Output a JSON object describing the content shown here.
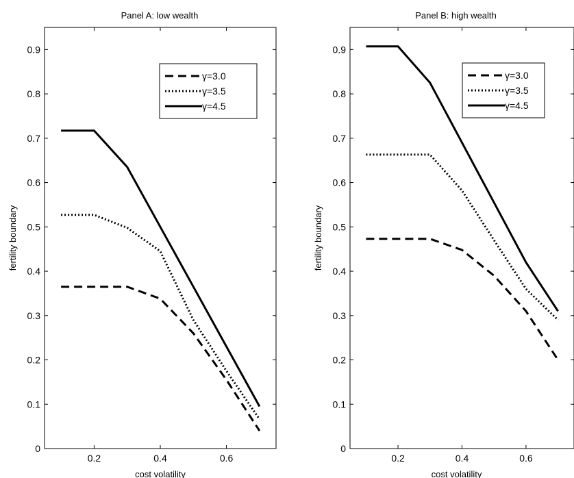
{
  "chart_data": [
    {
      "type": "line",
      "title": "Panel A: low wealth",
      "xlabel": "cost volatility",
      "ylabel": "fertility boundary",
      "xlim": [
        0.05,
        0.75
      ],
      "ylim": [
        0,
        0.95
      ],
      "xticks": [
        "0.2",
        "0.4",
        "0.6"
      ],
      "yticks": [
        "0",
        "0.1",
        "0.2",
        "0.3",
        "0.4",
        "0.5",
        "0.6",
        "0.7",
        "0.8",
        "0.9"
      ],
      "grid": false,
      "legend_position": "top-right",
      "x": [
        0.1,
        0.2,
        0.3,
        0.4,
        0.5,
        0.6,
        0.7
      ],
      "series": [
        {
          "name": "γ=3.0",
          "style": "dashed",
          "values": [
            0.365,
            0.365,
            0.365,
            0.338,
            0.26,
            0.155,
            0.04
          ]
        },
        {
          "name": "γ=3.5",
          "style": "dotted",
          "values": [
            0.527,
            0.527,
            0.498,
            0.445,
            0.29,
            0.175,
            0.066
          ]
        },
        {
          "name": "γ=4.5",
          "style": "solid",
          "values": [
            0.717,
            0.717,
            0.635,
            0.5,
            0.365,
            0.23,
            0.095
          ]
        }
      ]
    },
    {
      "type": "line",
      "title": "Panel B: high wealth",
      "xlabel": "cost volatility",
      "ylabel": "fertility boundary",
      "xlim": [
        0.05,
        0.75
      ],
      "ylim": [
        0,
        0.95
      ],
      "xticks": [
        "0.2",
        "0.4",
        "0.6"
      ],
      "yticks": [
        "0",
        "0.1",
        "0.2",
        "0.3",
        "0.4",
        "0.5",
        "0.6",
        "0.7",
        "0.8",
        "0.9"
      ],
      "grid": false,
      "legend_position": "top-right",
      "x": [
        0.1,
        0.2,
        0.3,
        0.4,
        0.5,
        0.6,
        0.7
      ],
      "series": [
        {
          "name": "γ=3.0",
          "style": "dashed",
          "values": [
            0.473,
            0.473,
            0.473,
            0.448,
            0.39,
            0.31,
            0.2
          ]
        },
        {
          "name": "γ=3.5",
          "style": "dotted",
          "values": [
            0.663,
            0.663,
            0.663,
            0.582,
            0.47,
            0.36,
            0.29
          ]
        },
        {
          "name": "γ=4.5",
          "style": "solid",
          "values": [
            0.907,
            0.907,
            0.825,
            0.69,
            0.555,
            0.42,
            0.31
          ]
        }
      ]
    }
  ]
}
